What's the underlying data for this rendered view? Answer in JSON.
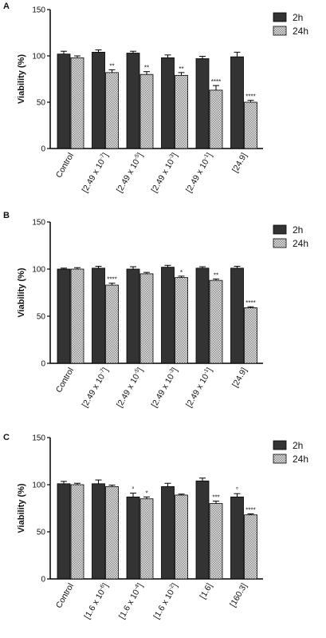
{
  "colors": {
    "series_2h": "#333333",
    "series_24h": "#bdbdbd",
    "axis": "#000000"
  },
  "chart_data": [
    {
      "panel": "A",
      "type": "bar",
      "categories": [
        "Control",
        "[2.49 x 10<sup>-7</sup>]",
        "[2.49 x 10<sup>-5</sup>]",
        "[2.49 x 10<sup>-3</sup>]",
        "[2.49 x 10<sup>-1</sup>]",
        "[24.9]"
      ],
      "category_labels": [
        {
          "main": "Control",
          "exp": ""
        },
        {
          "main": "[2.49 x 10",
          "exp": "-7",
          "close": "]"
        },
        {
          "main": "[2.49 x 10",
          "exp": "-5",
          "close": "]"
        },
        {
          "main": "[2.49 x 10",
          "exp": "-3",
          "close": "]"
        },
        {
          "main": "[2.49 x 10",
          "exp": "-1",
          "close": "]"
        },
        {
          "main": "[24.9]",
          "exp": ""
        }
      ],
      "ylabel": "Viability (%)",
      "ylim": [
        0,
        150
      ],
      "yticks": [
        0,
        50,
        100,
        150
      ],
      "legend_position": "right",
      "series": [
        {
          "name": "2h",
          "values": [
            102,
            104,
            103,
            98,
            97,
            99
          ],
          "errors": [
            3,
            2.5,
            2,
            3,
            2.5,
            5
          ],
          "marks": [
            "",
            "",
            "",
            "",
            "",
            ""
          ]
        },
        {
          "name": "24h",
          "values": [
            98,
            82,
            80,
            79,
            63,
            50
          ],
          "errors": [
            2,
            3,
            3,
            3,
            5,
            2
          ],
          "marks": [
            "",
            "**",
            "**",
            "**",
            "****",
            "****"
          ]
        }
      ]
    },
    {
      "panel": "B",
      "type": "bar",
      "category_labels": [
        {
          "main": "Control",
          "exp": ""
        },
        {
          "main": "[2.49 x 10",
          "exp": "-7",
          "close": "]"
        },
        {
          "main": "[2.49 x 10",
          "exp": "-5",
          "close": "]"
        },
        {
          "main": "[2.49 x 10",
          "exp": "-3",
          "close": "]"
        },
        {
          "main": "[2.49 x 10",
          "exp": "-1",
          "close": "]"
        },
        {
          "main": "[24.9]",
          "exp": ""
        }
      ],
      "ylabel": "Viability (%)",
      "ylim": [
        0,
        150
      ],
      "yticks": [
        0,
        50,
        100,
        150
      ],
      "legend_position": "right",
      "series": [
        {
          "name": "2h",
          "values": [
            100,
            101,
            100,
            102,
            101,
            101
          ],
          "errors": [
            1,
            2,
            2.5,
            2,
            1.5,
            2
          ],
          "marks": [
            "",
            "",
            "",
            "",
            "",
            ""
          ]
        },
        {
          "name": "24h",
          "values": [
            100,
            83,
            95,
            91,
            88,
            59
          ],
          "errors": [
            1.5,
            2,
            1.5,
            1.5,
            1.5,
            1
          ],
          "marks": [
            "",
            "****",
            "",
            "*",
            "**",
            "****"
          ]
        }
      ]
    },
    {
      "panel": "C",
      "type": "bar",
      "category_labels": [
        {
          "main": "Control",
          "exp": ""
        },
        {
          "main": "[1.6 x 10",
          "exp": "-6",
          "close": "]"
        },
        {
          "main": "[1.6 x 10",
          "exp": "-4",
          "close": "]"
        },
        {
          "main": "[1.6 x 10",
          "exp": "-2",
          "close": "]"
        },
        {
          "main": "[1.6]",
          "exp": ""
        },
        {
          "main": "[160.3]",
          "exp": ""
        }
      ],
      "ylabel": "Viability (%)",
      "ylim": [
        0,
        150
      ],
      "yticks": [
        0,
        50,
        100,
        150
      ],
      "legend_position": "right",
      "series": [
        {
          "name": "2h",
          "values": [
            101,
            101,
            87,
            98,
            104,
            87
          ],
          "errors": [
            2.5,
            4,
            4,
            3.5,
            3,
            3.5
          ],
          "marks": [
            "",
            "",
            "°",
            "",
            "",
            "°"
          ]
        },
        {
          "name": "24h",
          "values": [
            100,
            98,
            85,
            89,
            80,
            68
          ],
          "errors": [
            1.5,
            1.5,
            2,
            1,
            2.5,
            1
          ],
          "marks": [
            "",
            "",
            "*",
            "",
            "***",
            "****"
          ]
        }
      ]
    }
  ]
}
